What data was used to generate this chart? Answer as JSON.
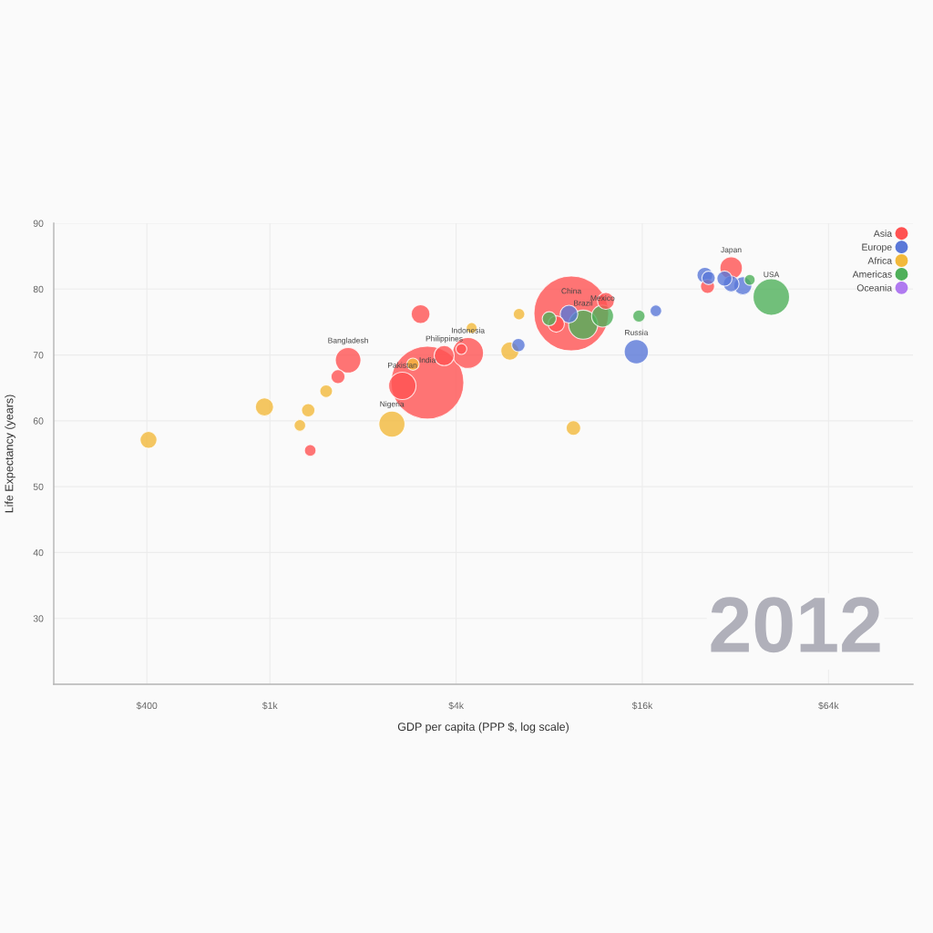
{
  "chart_data": {
    "type": "bubble",
    "xlabel": "GDP per capita (PPP $, log scale)",
    "ylabel": "Life Expectancy (years)",
    "log": "x",
    "grid": true,
    "legend": "top right",
    "xlim": [
      200,
      120000
    ],
    "xticks": [
      {
        "value": 400,
        "label": "$400"
      },
      {
        "value": 1000,
        "label": "$1k"
      },
      {
        "value": 4000,
        "label": "$4k"
      },
      {
        "value": 16000,
        "label": "$16k"
      },
      {
        "value": 64000,
        "label": "$64k"
      }
    ],
    "ylim": [
      20,
      90
    ],
    "yticks": [
      30,
      40,
      50,
      60,
      70,
      80,
      90
    ],
    "series": [
      {
        "name": "Asia",
        "color": "#ff5252",
        "x": [
          1350,
          1660,
          1790,
          2680,
          3070,
          3230,
          3660,
          4160,
          4370,
          8430,
          9430,
          12200,
          26000,
          31000
        ],
        "values": [
          55.5,
          66.7,
          69.2,
          65.3,
          76.2,
          65.8,
          69.9,
          70.9,
          70.3,
          74.7,
          76.3,
          78.2,
          80.4,
          83.2
        ],
        "sizes": [
          0.024,
          0.035,
          0.117,
          0.134,
          0.063,
          0.95,
          0.072,
          0.021,
          0.172,
          0.048,
          1,
          0.051,
          0.035,
          0.09
        ]
      },
      {
        "name": "Europe",
        "color": "#5a78d8",
        "x": [
          6360,
          9270,
          15300,
          17700,
          25500,
          26200,
          29500,
          31000,
          33800
        ],
        "values": [
          71.5,
          76.2,
          70.5,
          76.7,
          82.1,
          81.7,
          81.6,
          80.8,
          80.5
        ],
        "sizes": [
          0.032,
          0.056,
          0.105,
          0.024,
          0.045,
          0.032,
          0.041,
          0.045,
          0.059
        ]
      },
      {
        "name": "Africa",
        "color": "#f2b93b",
        "x": [
          405,
          960,
          1250,
          1330,
          1520,
          2480,
          2900,
          4490,
          5970,
          6390,
          9580
        ],
        "values": [
          57.1,
          62.1,
          59.3,
          61.6,
          64.5,
          59.5,
          68.6,
          74.1,
          70.6,
          76.2,
          58.9
        ],
        "sizes": [
          0.051,
          0.059,
          0.024,
          0.032,
          0.029,
          0.122,
          0.027,
          0.021,
          0.059,
          0.024,
          0.038
        ]
      },
      {
        "name": "Americas",
        "color": "#4fb05a",
        "x": [
          8000,
          10300,
          11900,
          15600,
          35600,
          41800
        ],
        "values": [
          75.5,
          74.6,
          75.9,
          75.9,
          81.4,
          78.8
        ],
        "sizes": [
          0.035,
          0.152,
          0.086,
          0.027,
          0.021,
          0.238
        ]
      },
      {
        "name": "Oceania",
        "color": "#b07af0"
      }
    ],
    "annotations": [
      {
        "text": "Bangladesh",
        "x": 1790,
        "y": 69.2
      },
      {
        "text": "Pakistan",
        "x": 2680,
        "y": 65.3
      },
      {
        "text": "India",
        "x": 3230,
        "y": 65.8
      },
      {
        "text": "Philippines",
        "x": 3660,
        "y": 69.9
      },
      {
        "text": "Indonesia",
        "x": 4370,
        "y": 70.3
      },
      {
        "text": "Nigeria",
        "x": 2480,
        "y": 59.5
      },
      {
        "text": "China",
        "x": 9430,
        "y": 76.3
      },
      {
        "text": "Brazil",
        "x": 10300,
        "y": 74.6
      },
      {
        "text": "Mexico",
        "x": 11900,
        "y": 75.9
      },
      {
        "text": "Russia",
        "x": 15300,
        "y": 70.5
      },
      {
        "text": "Japan",
        "x": 31000,
        "y": 83.2
      },
      {
        "text": "USA",
        "x": 41800,
        "y": 78.8
      },
      "2012"
    ]
  }
}
